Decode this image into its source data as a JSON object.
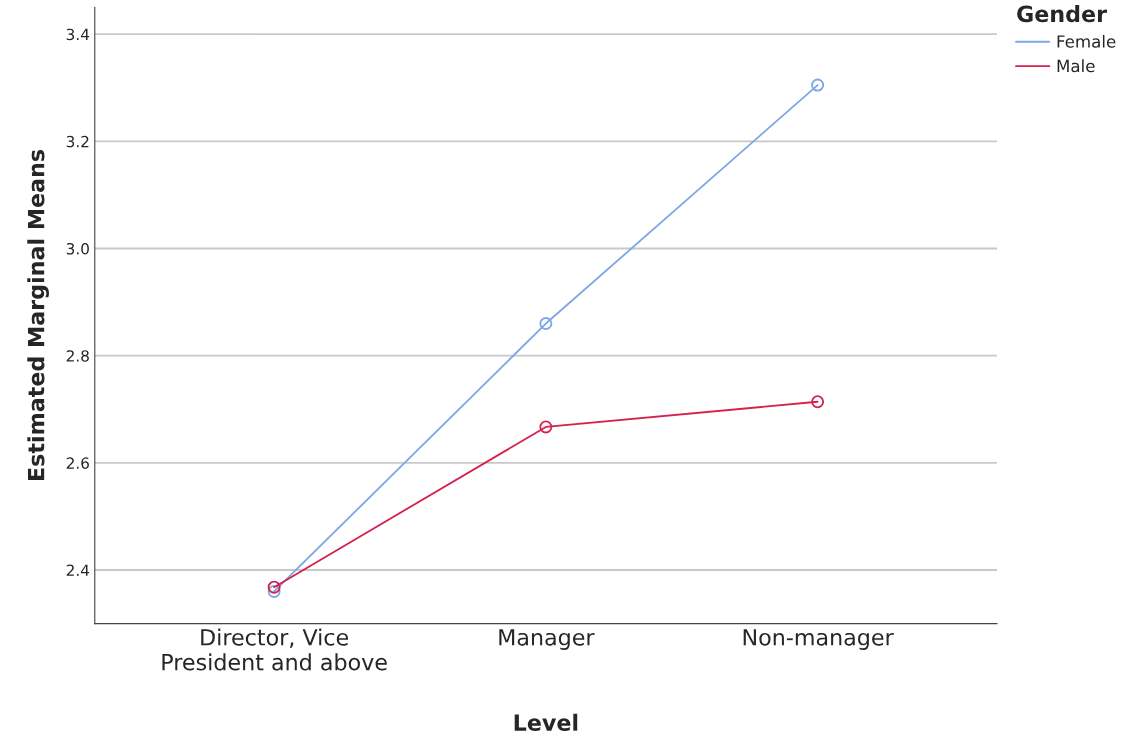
{
  "chart_data": {
    "type": "line",
    "xlabel": "Level",
    "ylabel": "Estimated Marginal Means",
    "legend_title": "Gender",
    "categories": [
      "Director, Vice\nPresident and above",
      "Manager",
      "Non-manager"
    ],
    "series": [
      {
        "name": "Female",
        "color": "#7ba7e6",
        "values": [
          2.36,
          2.86,
          3.305
        ]
      },
      {
        "name": "Male",
        "color": "#d6204e",
        "values": [
          2.368,
          2.667,
          2.714
        ]
      }
    ],
    "ylim": [
      2.3,
      3.45
    ],
    "yticks": [
      {
        "value": 2.4,
        "label": "2.4"
      },
      {
        "value": 2.6,
        "label": "2.6"
      },
      {
        "value": 2.8,
        "label": "2.8"
      },
      {
        "value": 3.0,
        "label": "3.0"
      },
      {
        "value": 3.2,
        "label": "3.2"
      },
      {
        "value": 3.4,
        "label": "3.4"
      }
    ],
    "grid": "y",
    "legend": "top right",
    "marker": "circle",
    "line_style": "solid"
  }
}
